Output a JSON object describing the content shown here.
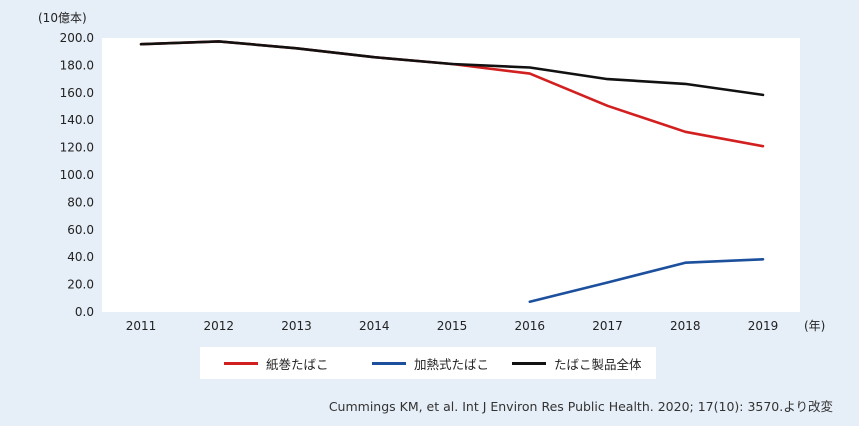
{
  "chart_data": {
    "type": "line",
    "ylabel": "(10億本)",
    "xunit": "(年)",
    "x": [
      "2011",
      "2012",
      "2013",
      "2014",
      "2015",
      "2016",
      "2017",
      "2018",
      "2019"
    ],
    "ylim": [
      0,
      200
    ],
    "yticks": [
      "200.0",
      "180.0",
      "160.0",
      "140.0",
      "120.0",
      "100.0",
      "80.0",
      "60.0",
      "40.0",
      "20.0",
      "0.0"
    ],
    "grid": false,
    "legend_position": "bottom",
    "series": [
      {
        "name": "紙巻たばこ",
        "color": "#d21f1f",
        "values": [
          195.5,
          197.5,
          192.5,
          186.0,
          181.0,
          174.0,
          150.5,
          131.5,
          121.0
        ]
      },
      {
        "name": "加熱式たばこ",
        "color": "#1c4f9c",
        "values": [
          null,
          null,
          null,
          null,
          null,
          7.5,
          21.5,
          36.0,
          38.5
        ]
      },
      {
        "name": "たばこ製品全体",
        "color": "#111111",
        "values": [
          195.5,
          197.5,
          192.5,
          186.0,
          181.0,
          178.5,
          170.0,
          166.5,
          158.5
        ]
      }
    ]
  },
  "source_note": "Cummings KM, et al. Int J Environ Res Public Health. 2020; 17(10): 3570.より改変"
}
